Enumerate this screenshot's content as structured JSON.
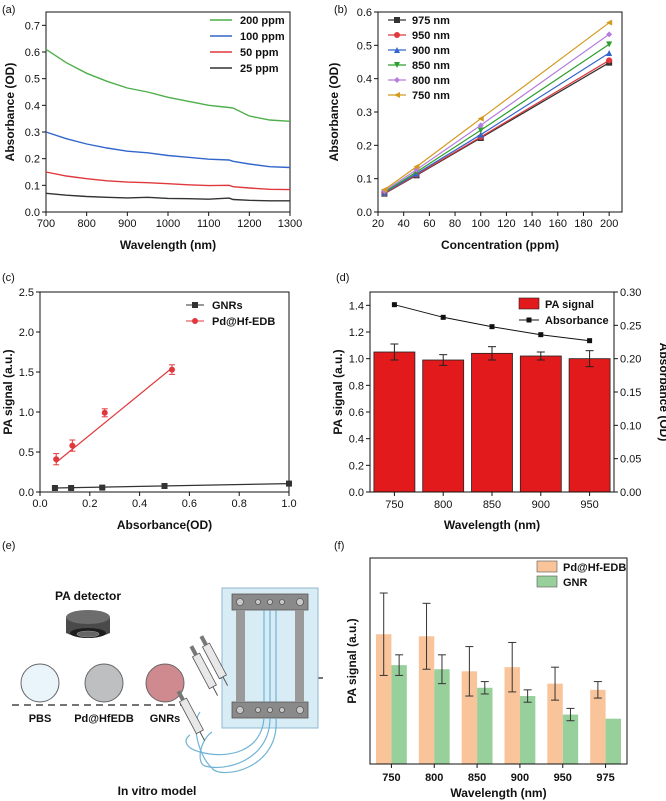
{
  "chart_data": [
    {
      "panel": "(a)",
      "type": "line",
      "xlabel": "Wavelength (nm)",
      "ylabel": "Absorbance (OD)",
      "xlim": [
        700,
        1300
      ],
      "ylim": [
        0,
        0.75
      ],
      "xticks": [
        "700",
        "800",
        "900",
        "1000",
        "1100",
        "1200",
        "1300"
      ],
      "yticks": [
        "0.0",
        "0.1",
        "0.2",
        "0.3",
        "0.4",
        "0.5",
        "0.6",
        "0.7"
      ],
      "legend": "top-right",
      "x": [
        700,
        750,
        800,
        850,
        900,
        950,
        1000,
        1050,
        1100,
        1150,
        1160,
        1200,
        1250,
        1300
      ],
      "series": [
        {
          "name": "200 ppm",
          "color": "#4daf4a",
          "values": [
            0.61,
            0.56,
            0.52,
            0.49,
            0.465,
            0.45,
            0.43,
            0.415,
            0.4,
            0.392,
            0.39,
            0.36,
            0.345,
            0.34
          ]
        },
        {
          "name": "100 ppm",
          "color": "#3366cc",
          "values": [
            0.3,
            0.275,
            0.255,
            0.24,
            0.228,
            0.222,
            0.212,
            0.205,
            0.198,
            0.195,
            0.19,
            0.18,
            0.17,
            0.167
          ]
        },
        {
          "name": "50 ppm",
          "color": "#e0383c",
          "values": [
            0.15,
            0.135,
            0.125,
            0.117,
            0.112,
            0.11,
            0.106,
            0.102,
            0.099,
            0.1,
            0.095,
            0.09,
            0.085,
            0.084
          ]
        },
        {
          "name": "25 ppm",
          "color": "#333333",
          "values": [
            0.07,
            0.063,
            0.058,
            0.055,
            0.053,
            0.055,
            0.051,
            0.05,
            0.048,
            0.052,
            0.047,
            0.044,
            0.042,
            0.042
          ]
        }
      ]
    },
    {
      "panel": "(b)",
      "type": "line",
      "xlabel": "Concentration (ppm)",
      "ylabel": "Absorbance (OD)",
      "xlim": [
        20,
        210
      ],
      "ylim": [
        0,
        0.6
      ],
      "xticks": [
        "20",
        "40",
        "60",
        "80",
        "100",
        "120",
        "140",
        "160",
        "180",
        "200"
      ],
      "yticks": [
        "0.0",
        "0.1",
        "0.2",
        "0.3",
        "0.4",
        "0.5",
        "0.6"
      ],
      "legend": "top-left",
      "x": [
        25,
        50,
        100,
        200
      ],
      "series": [
        {
          "name": "975 nm",
          "color": "#333333",
          "marker": "square",
          "values": [
            0.055,
            0.11,
            0.222,
            0.448
          ]
        },
        {
          "name": "950 nm",
          "color": "#e0383c",
          "marker": "circle",
          "values": [
            0.056,
            0.112,
            0.225,
            0.455
          ]
        },
        {
          "name": "900 nm",
          "color": "#3366cc",
          "marker": "triangle-up",
          "values": [
            0.058,
            0.115,
            0.232,
            0.477
          ]
        },
        {
          "name": "850 nm",
          "color": "#2ca02c",
          "marker": "triangle-down",
          "values": [
            0.06,
            0.12,
            0.245,
            0.503
          ]
        },
        {
          "name": "800 nm",
          "color": "#b57edc",
          "marker": "diamond",
          "values": [
            0.063,
            0.127,
            0.26,
            0.533
          ]
        },
        {
          "name": "750 nm",
          "color": "#d49a1e",
          "marker": "triangle-left",
          "values": [
            0.067,
            0.136,
            0.28,
            0.568
          ]
        }
      ]
    },
    {
      "panel": "(c)",
      "type": "scatter",
      "xlabel": "Absorbance(OD)",
      "ylabel": "PA signal (a.u.)",
      "xlim": [
        0,
        1.0
      ],
      "ylim": [
        0,
        2.5
      ],
      "xticks": [
        "0.0",
        "0.2",
        "0.4",
        "0.6",
        "0.8",
        "1.0"
      ],
      "yticks": [
        "0.0",
        "0.5",
        "1.0",
        "1.5",
        "2.0",
        "2.5"
      ],
      "legend": "top-right",
      "series": [
        {
          "name": "GNRs",
          "color": "#333333",
          "marker": "square",
          "x": [
            0.06,
            0.125,
            0.25,
            0.5,
            1.0
          ],
          "values": [
            0.05,
            0.05,
            0.055,
            0.075,
            0.105
          ],
          "errors": [
            0.01,
            0.01,
            0.01,
            0.01,
            0.01
          ],
          "fit": [
            [
              0.06,
              0.05
            ],
            [
              1.0,
              0.105
            ]
          ]
        },
        {
          "name": "Pd@Hf-EDB",
          "color": "#e0383c",
          "marker": "circle",
          "x": [
            0.065,
            0.13,
            0.26,
            0.53
          ],
          "values": [
            0.41,
            0.58,
            0.99,
            1.53
          ],
          "errors": [
            0.07,
            0.07,
            0.05,
            0.06
          ],
          "fit": [
            [
              0.065,
              0.37
            ],
            [
              0.53,
              1.55
            ]
          ]
        }
      ]
    },
    {
      "panel": "(d)",
      "type": "bar",
      "xlabel": "Wavelength (nm)",
      "ylabel": "PA signal (a.u.)",
      "y2label": "Absorbance (OD)",
      "categories": [
        "750",
        "800",
        "850",
        "900",
        "950"
      ],
      "ylim": [
        0,
        1.5
      ],
      "y2lim": [
        0,
        0.3
      ],
      "yticks": [
        "0.0",
        "0.2",
        "0.4",
        "0.6",
        "0.8",
        "1.0",
        "1.2",
        "1.4"
      ],
      "y2ticks": [
        "0.00",
        "0.05",
        "0.10",
        "0.15",
        "0.20",
        "0.25",
        "0.30"
      ],
      "legend": "top-right",
      "series": [
        {
          "name": "PA signal",
          "color": "#e31a1c",
          "values": [
            1.05,
            0.99,
            1.04,
            1.02,
            1.0
          ],
          "errors": [
            0.06,
            0.04,
            0.05,
            0.03,
            0.06
          ]
        },
        {
          "name": "Absorbance",
          "color": "#111111",
          "axis": "right",
          "values": [
            0.281,
            0.262,
            0.248,
            0.236,
            0.227
          ]
        }
      ]
    },
    {
      "panel": "(f)",
      "type": "bar",
      "xlabel": "Wavelength (nm)",
      "ylabel": "PA signal (a.u.)",
      "categories": [
        "750",
        "800",
        "850",
        "900",
        "950",
        "975"
      ],
      "ylim": [
        0,
        1.0
      ],
      "legend": "top-right",
      "series": [
        {
          "name": "Pd@Hf-EDB",
          "color": "#f9c49a",
          "values": [
            0.63,
            0.62,
            0.45,
            0.47,
            0.39,
            0.36
          ],
          "errors": [
            0.2,
            0.16,
            0.12,
            0.12,
            0.08,
            0.04
          ]
        },
        {
          "name": "GNR",
          "color": "#98d09c",
          "values": [
            0.48,
            0.46,
            0.37,
            0.33,
            0.24,
            0.22
          ],
          "errors": [
            0.05,
            0.07,
            0.03,
            0.03,
            0.03,
            0.0
          ]
        }
      ]
    }
  ],
  "panels": {
    "a": "(a)",
    "b": "(b)",
    "c": "(c)",
    "d": "(d)",
    "e": "(e)",
    "f": "(f)"
  },
  "diagram": {
    "detector_label": "PA detector",
    "circles": [
      {
        "label": "PBS",
        "color": "#eaf5fb"
      },
      {
        "label": "Pd@HfEDB",
        "color": "#bdbfc1"
      },
      {
        "label": "GNRs",
        "color": "#cf8a8f"
      }
    ],
    "caption": "In vitro model"
  }
}
